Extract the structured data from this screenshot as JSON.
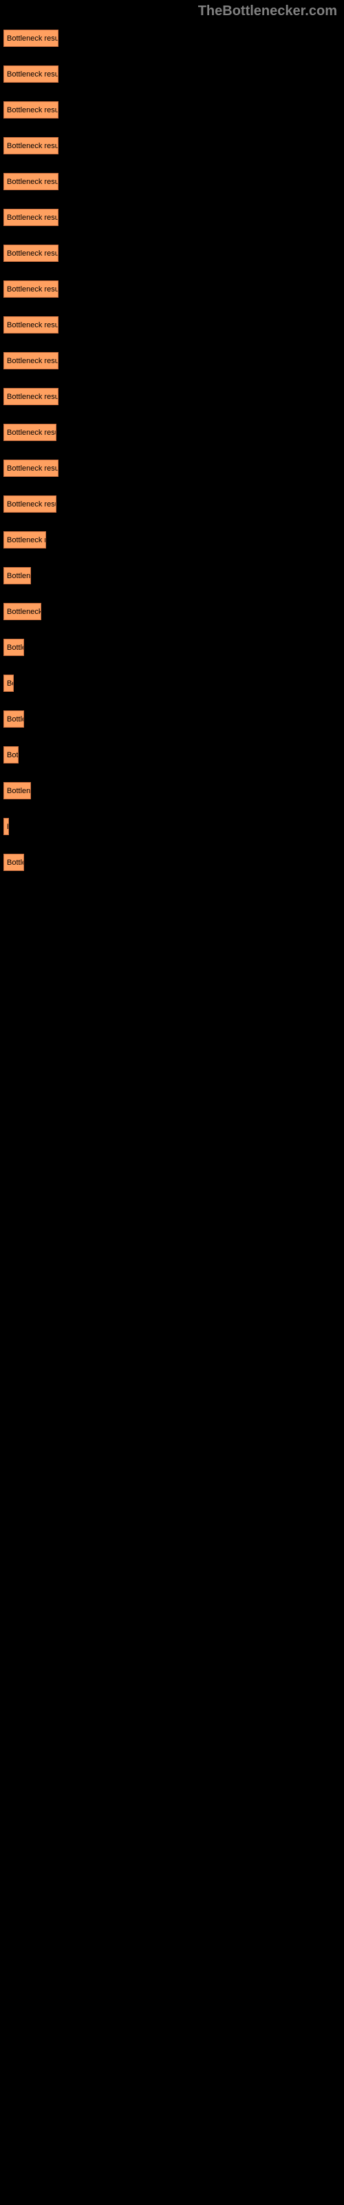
{
  "header": {
    "title": "TheBottlenecker.com"
  },
  "chart": {
    "type": "bar",
    "bar_color": "#ffa060",
    "bar_border_color": "#cc7040",
    "background_color": "#000000",
    "text_color": "#000000",
    "font_size": 11,
    "max_width": 80,
    "bars": [
      {
        "label": "Bottleneck result",
        "width": 80
      },
      {
        "label": "Bottleneck result",
        "width": 80
      },
      {
        "label": "Bottleneck result",
        "width": 80
      },
      {
        "label": "Bottleneck result",
        "width": 80
      },
      {
        "label": "Bottleneck result",
        "width": 80
      },
      {
        "label": "Bottleneck result",
        "width": 80
      },
      {
        "label": "Bottleneck result",
        "width": 80
      },
      {
        "label": "Bottleneck result",
        "width": 80
      },
      {
        "label": "Bottleneck result",
        "width": 80
      },
      {
        "label": "Bottleneck result",
        "width": 80
      },
      {
        "label": "Bottleneck result",
        "width": 80
      },
      {
        "label": "Bottleneck resul",
        "width": 77
      },
      {
        "label": "Bottleneck result",
        "width": 80
      },
      {
        "label": "Bottleneck resul",
        "width": 77
      },
      {
        "label": "Bottleneck re",
        "width": 62
      },
      {
        "label": "Bottlene",
        "width": 40
      },
      {
        "label": "Bottleneck",
        "width": 55
      },
      {
        "label": "Bottle",
        "width": 30
      },
      {
        "label": "Bo",
        "width": 15
      },
      {
        "label": "Bottle",
        "width": 30
      },
      {
        "label": "Bott",
        "width": 22
      },
      {
        "label": "Bottlene",
        "width": 40
      },
      {
        "label": "B",
        "width": 8
      },
      {
        "label": "Bottle",
        "width": 30
      }
    ]
  }
}
